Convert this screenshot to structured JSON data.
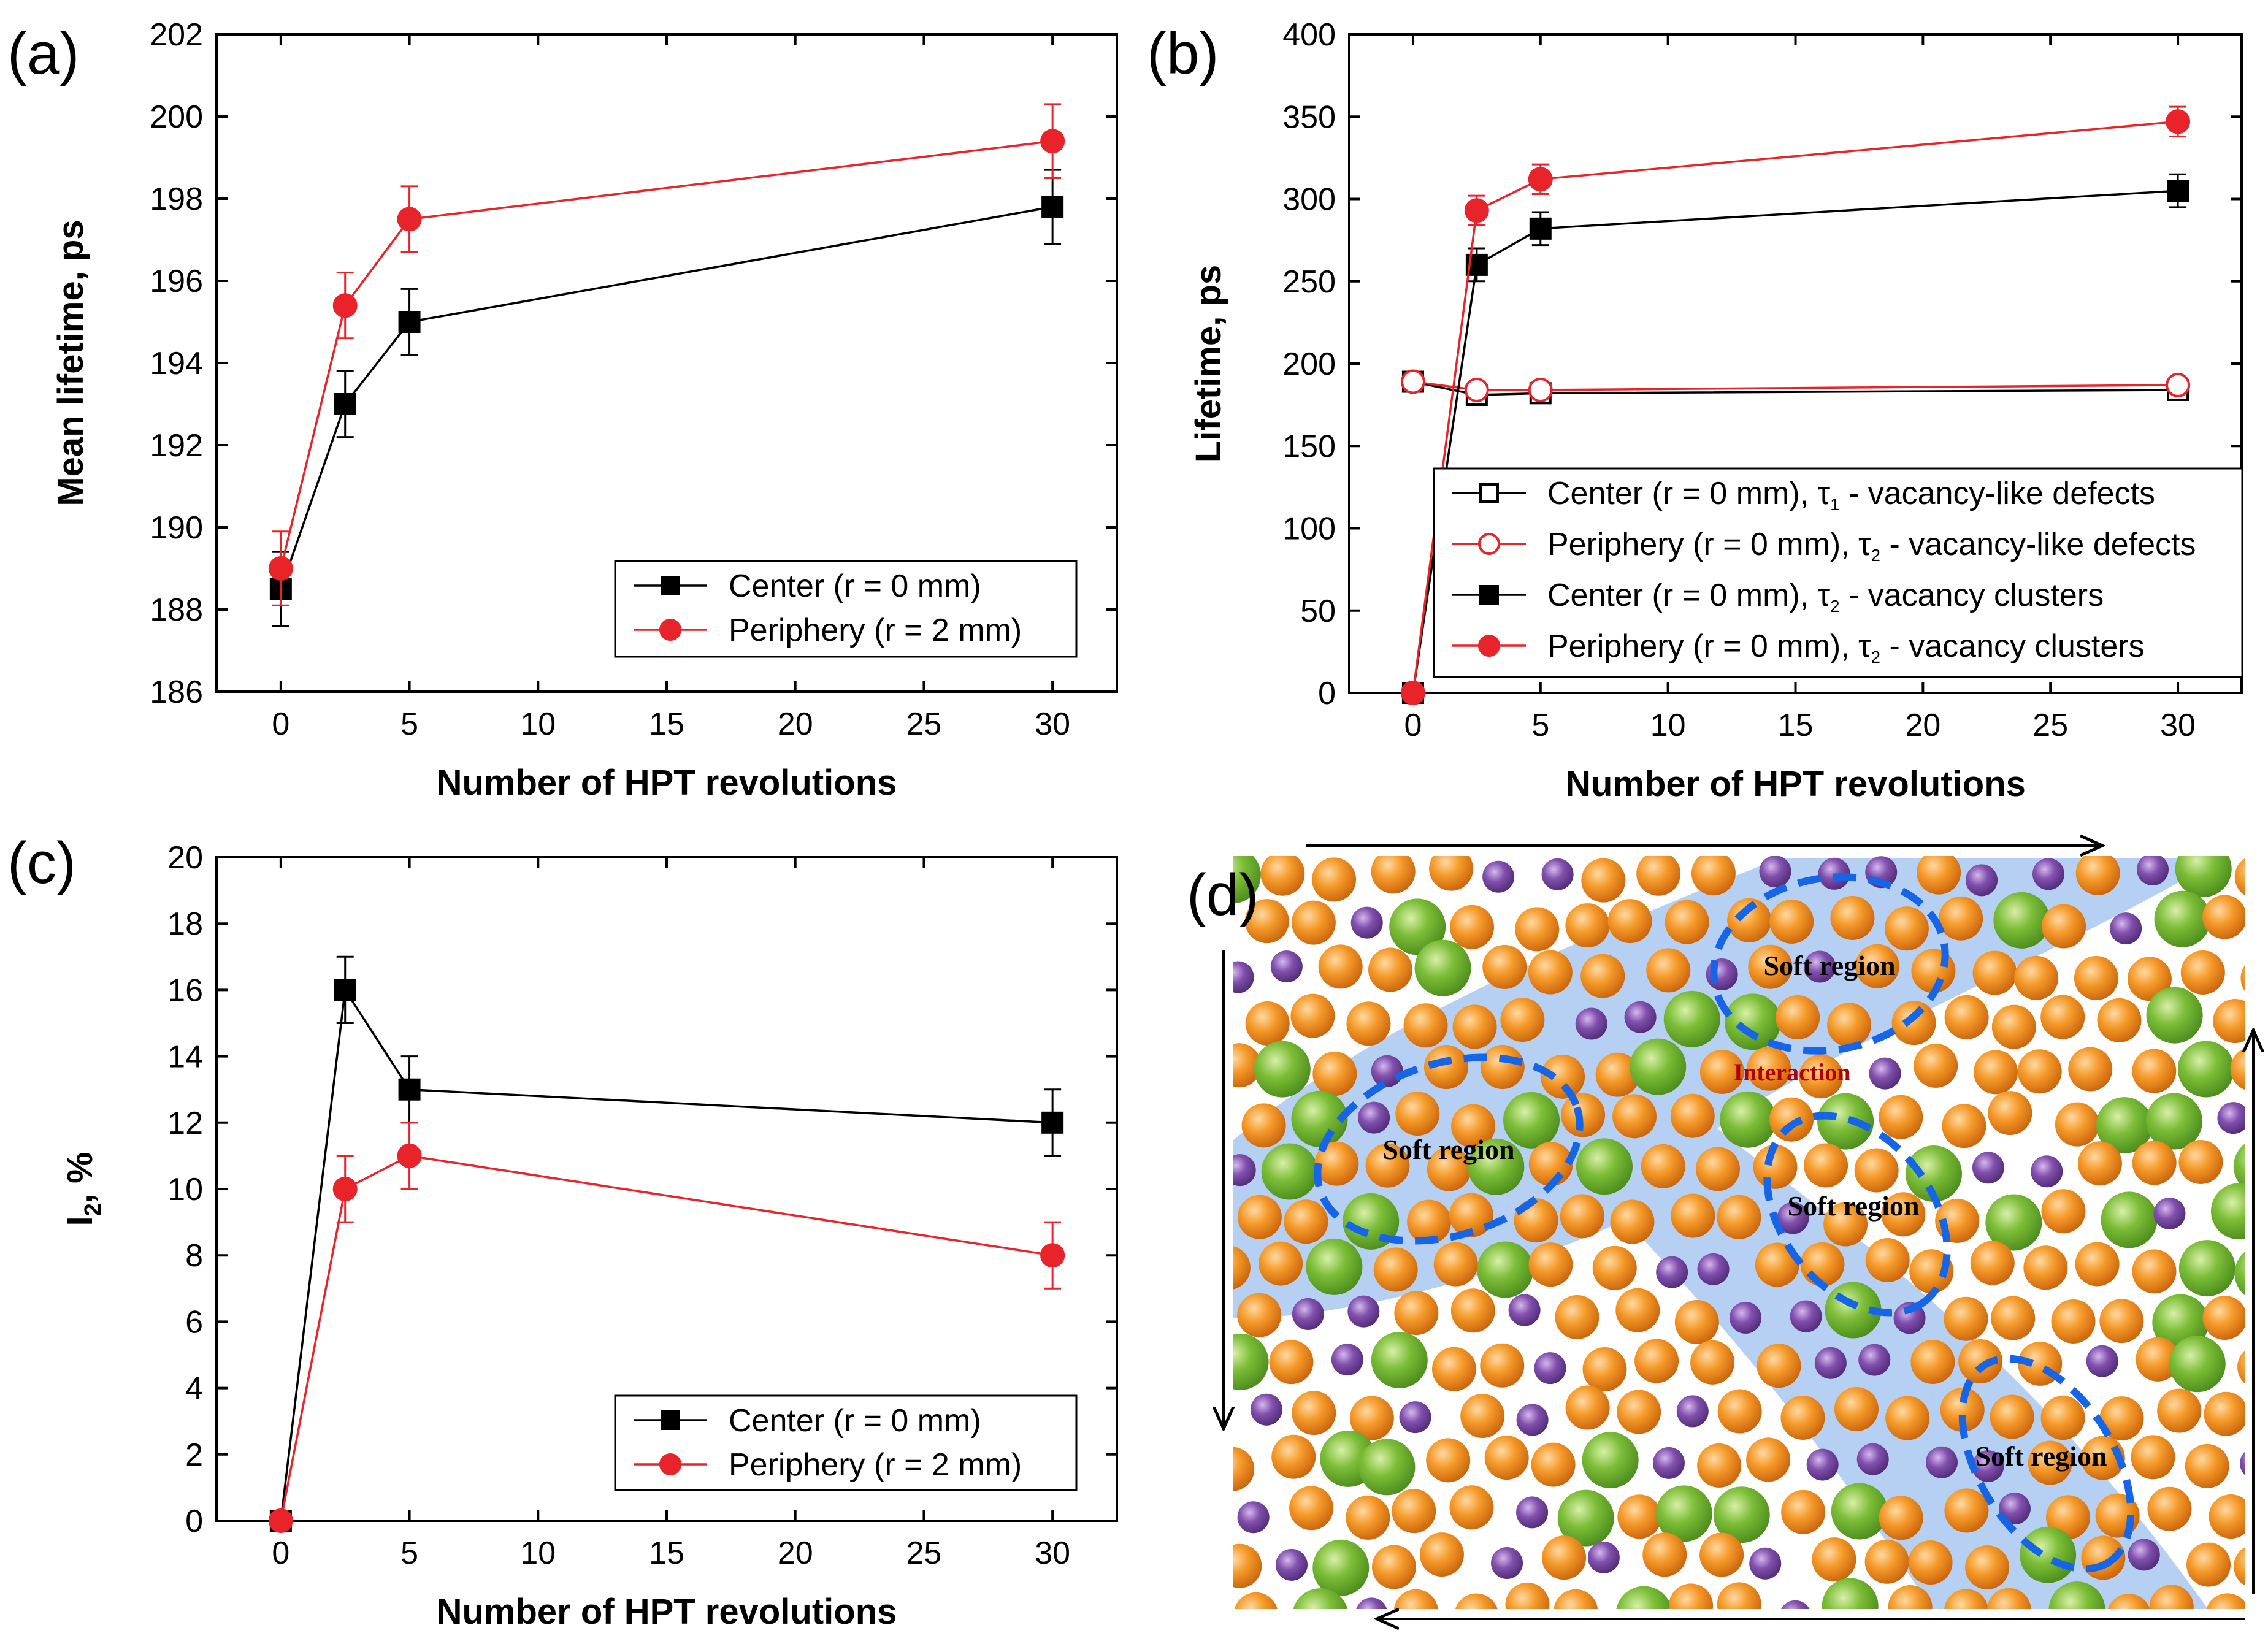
{
  "colors": {
    "center": "#000000",
    "periphery": "#e8232a",
    "soft_region_fill": "#a9c8f2",
    "soft_region_edge": "#1565e6",
    "orange_atom": "#f28a17",
    "green_atom": "#6fb22e",
    "purple_atom": "#7a4aa3"
  },
  "chart_data": [
    {
      "panel": "(a)",
      "type": "line",
      "xlabel": "Number of HPT revolutions",
      "ylabel": "Mean lifetime, ps",
      "xlim": [
        -2.5,
        32.5
      ],
      "ylim": [
        186,
        202
      ],
      "xticks": [
        0,
        5,
        10,
        15,
        20,
        25,
        30
      ],
      "yticks": [
        186,
        188,
        190,
        192,
        194,
        196,
        198,
        200,
        202
      ],
      "legend_position": "bottom-right",
      "series": [
        {
          "name": "Center (r = 0 mm)",
          "color": "#000000",
          "marker": "square",
          "filled": true,
          "x": [
            0,
            2.5,
            5,
            30
          ],
          "y": [
            188.5,
            193.0,
            195.0,
            197.8
          ],
          "err": [
            0.9,
            0.8,
            0.8,
            0.9
          ]
        },
        {
          "name": "Periphery (r = 2 mm)",
          "color": "#e8232a",
          "marker": "circle",
          "filled": true,
          "x": [
            0,
            2.5,
            5,
            30
          ],
          "y": [
            189.0,
            195.4,
            197.5,
            199.4
          ],
          "err": [
            0.9,
            0.8,
            0.8,
            0.9
          ]
        }
      ]
    },
    {
      "panel": "(b)",
      "type": "line",
      "xlabel": "Number of HPT revolutions",
      "ylabel": "Lifetime, ps",
      "xlim": [
        -2.5,
        32.5
      ],
      "ylim": [
        0,
        400
      ],
      "xticks": [
        0,
        5,
        10,
        15,
        20,
        25,
        30
      ],
      "yticks": [
        0,
        50,
        100,
        150,
        200,
        250,
        300,
        350,
        400
      ],
      "legend_position": "bottom-right",
      "series": [
        {
          "name": "Center (r = 0 mm), τ",
          "sub": "1",
          "suffix": " - vacancy-like defects",
          "color": "#000000",
          "marker": "square",
          "filled": false,
          "x": [
            0,
            2.5,
            5,
            30
          ],
          "y": [
            189,
            181,
            182,
            184
          ],
          "err": [
            3,
            3,
            3,
            3
          ]
        },
        {
          "name": "Periphery (r = 0 mm), τ",
          "sub": "2",
          "suffix": " - vacancy-like defects",
          "color": "#e8232a",
          "marker": "circle",
          "filled": false,
          "x": [
            0,
            2.5,
            5,
            30
          ],
          "y": [
            189,
            184,
            184,
            187
          ],
          "err": [
            3,
            3,
            3,
            3
          ]
        },
        {
          "name": "Center (r = 0 mm), τ",
          "sub": "2",
          "suffix": " - vacancy clusters",
          "color": "#000000",
          "marker": "square",
          "filled": true,
          "x": [
            0,
            2.5,
            5,
            30
          ],
          "y": [
            0,
            260,
            282,
            305
          ],
          "err": [
            0,
            10,
            10,
            10
          ]
        },
        {
          "name": "Periphery (r = 0 mm), τ",
          "sub": "2",
          "suffix": " - vacancy clusters",
          "color": "#e8232a",
          "marker": "circle",
          "filled": true,
          "x": [
            0,
            2.5,
            5,
            30
          ],
          "y": [
            0,
            293,
            312,
            347
          ],
          "err": [
            0,
            9,
            9,
            9
          ]
        }
      ]
    },
    {
      "panel": "(c)",
      "type": "line",
      "xlabel": "Number of HPT revolutions",
      "ylabel": "I",
      "ylabel_sub": "2",
      "ylabel_suffix": ", %",
      "xlim": [
        -2.5,
        32.5
      ],
      "ylim": [
        0,
        20
      ],
      "xticks": [
        0,
        5,
        10,
        15,
        20,
        25,
        30
      ],
      "yticks": [
        0,
        2,
        4,
        6,
        8,
        10,
        12,
        14,
        16,
        18,
        20
      ],
      "legend_position": "bottom-right",
      "series": [
        {
          "name": "Center (r = 0 mm)",
          "color": "#000000",
          "marker": "square",
          "filled": true,
          "x": [
            0,
            2.5,
            5,
            30
          ],
          "y": [
            0,
            16,
            13,
            12
          ],
          "err": [
            0,
            1,
            1,
            1
          ]
        },
        {
          "name": "Periphery (r = 2 mm)",
          "color": "#e8232a",
          "marker": "circle",
          "filled": true,
          "x": [
            0,
            2.5,
            5,
            30
          ],
          "y": [
            0,
            10,
            11,
            8
          ],
          "err": [
            0,
            1,
            1,
            1
          ]
        }
      ]
    }
  ],
  "panel_d": {
    "label": "(d)",
    "soft_region_label": "Soft region",
    "interaction_label": "Interaction"
  }
}
